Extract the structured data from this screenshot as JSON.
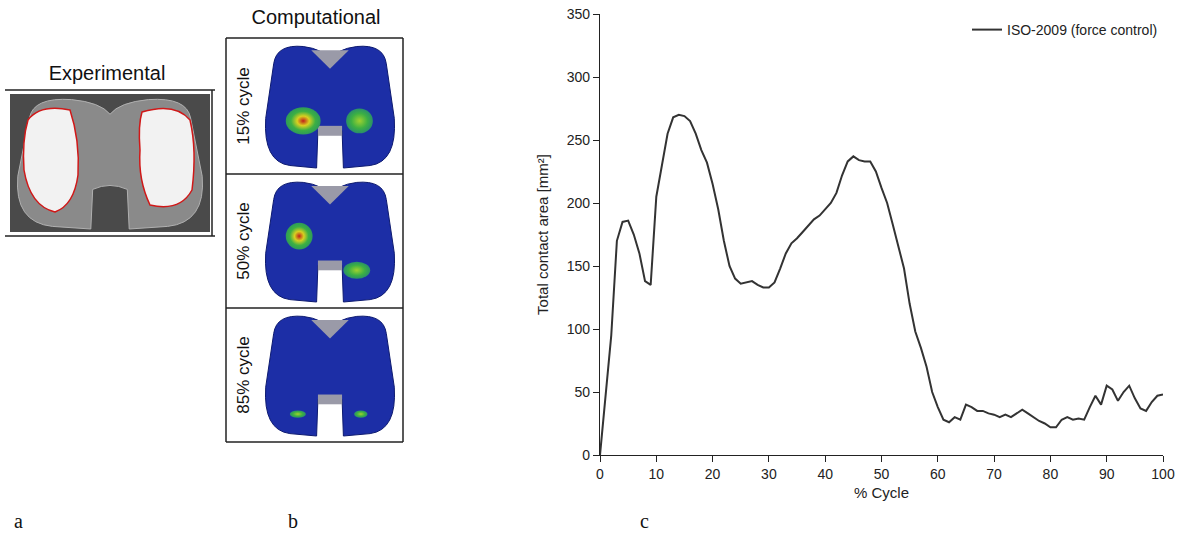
{
  "figure": {
    "panels": [
      {
        "letter": "a",
        "title": "Experimental"
      },
      {
        "letter": "b",
        "title": "Computational",
        "rows": [
          "15% cycle",
          "50% cycle",
          "85% cycle"
        ]
      },
      {
        "letter": "c"
      }
    ]
  },
  "chart_data": {
    "type": "line",
    "x_label": "% Cycle",
    "y_label": "Total contact area [mm²]",
    "x": [
      0,
      1,
      2,
      3,
      4,
      5,
      6,
      7,
      8,
      9,
      10,
      11,
      12,
      13,
      14,
      15,
      16,
      17,
      18,
      19,
      20,
      21,
      22,
      23,
      24,
      25,
      26,
      27,
      28,
      29,
      30,
      31,
      32,
      33,
      34,
      35,
      36,
      37,
      38,
      39,
      40,
      41,
      42,
      43,
      44,
      45,
      46,
      47,
      48,
      49,
      50,
      51,
      52,
      53,
      54,
      55,
      56,
      57,
      58,
      59,
      60,
      61,
      62,
      63,
      64,
      65,
      66,
      67,
      68,
      69,
      70,
      71,
      72,
      73,
      74,
      75,
      76,
      77,
      78,
      79,
      80,
      81,
      82,
      83,
      84,
      85,
      86,
      87,
      88,
      89,
      90,
      91,
      92,
      93,
      94,
      95,
      96,
      97,
      98,
      99,
      100
    ],
    "series": [
      {
        "name": "ISO-2009 (force control)",
        "color": "#333333",
        "values": [
          0,
          45,
          95,
          170,
          185,
          186,
          175,
          160,
          138,
          135,
          205,
          230,
          255,
          268,
          270,
          269,
          265,
          255,
          242,
          232,
          215,
          195,
          170,
          150,
          140,
          136,
          137,
          138,
          135,
          133,
          133,
          137,
          148,
          160,
          168,
          172,
          177,
          182,
          187,
          190,
          195,
          200,
          208,
          222,
          233,
          237,
          234,
          233,
          233,
          225,
          212,
          200,
          183,
          165,
          148,
          120,
          98,
          85,
          70,
          50,
          38,
          28,
          26,
          30,
          28,
          40,
          38,
          35,
          35,
          33,
          32,
          30,
          32,
          30,
          33,
          36,
          33,
          30,
          27,
          25,
          22,
          22,
          28,
          30,
          28,
          29,
          28,
          38,
          47,
          40,
          55,
          52,
          43,
          50,
          55,
          45,
          37,
          35,
          42,
          47,
          48
        ]
      }
    ],
    "xlim": [
      0,
      100
    ],
    "ylim": [
      0,
      350
    ],
    "xticks": [
      0,
      10,
      20,
      30,
      40,
      50,
      60,
      70,
      80,
      90,
      100
    ],
    "yticks": [
      0,
      50,
      100,
      150,
      200,
      250,
      300,
      350
    ],
    "grid": false,
    "legend": "upper right"
  }
}
